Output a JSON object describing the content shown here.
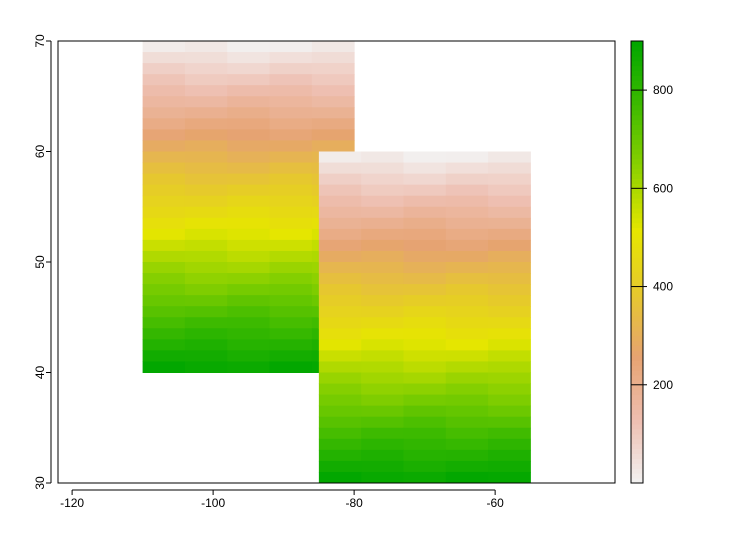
{
  "chart_data": {
    "type": "heatmap",
    "title": "",
    "xlabel": "",
    "ylabel": "",
    "xlim": [
      -122,
      -43
    ],
    "ylim": [
      30,
      70
    ],
    "x_ticks": [
      "-120",
      "-100",
      "-80",
      "-60"
    ],
    "x_tick_values": [
      -120,
      -100,
      -80,
      -60
    ],
    "y_ticks": [
      "30",
      "40",
      "50",
      "60",
      "70"
    ],
    "y_tick_values": [
      30,
      40,
      50,
      60,
      70
    ],
    "rasters": [
      {
        "xmin": -110,
        "xmax": -80,
        "ymin": 40,
        "ymax": 70,
        "ncol": 5,
        "nrow": 30
      },
      {
        "xmin": -85,
        "xmax": -55,
        "ymin": 30,
        "ymax": 60,
        "ncol": 5,
        "nrow": 30
      }
    ],
    "legend": {
      "position": "right",
      "min": 0,
      "max": 900,
      "ticks": [
        "200",
        "400",
        "600",
        "800"
      ],
      "tick_values": [
        200,
        400,
        600,
        800
      ],
      "palette": [
        "#F2F2F2",
        "#EEBEB0",
        "#E6A371",
        "#E6C82E",
        "#E6E600",
        "#8CD100",
        "#3CBA00",
        "#00A600"
      ]
    },
    "grid": false
  }
}
